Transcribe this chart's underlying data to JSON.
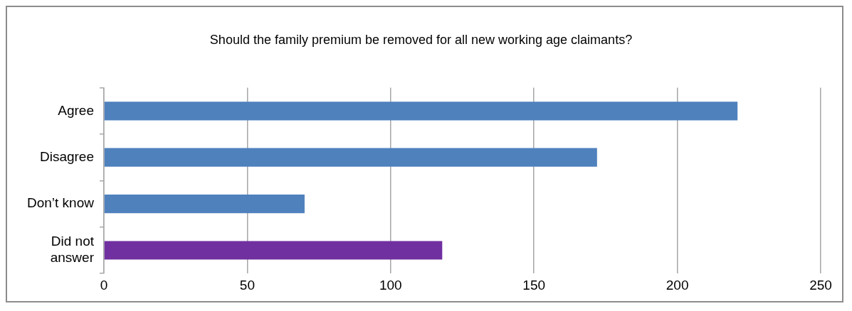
{
  "chart_data": {
    "type": "bar",
    "orientation": "horizontal",
    "title": "Should the family premium be removed for all new working age claimants?",
    "categories": [
      "Agree",
      "Disagree",
      "Don’t know",
      "Did not answer"
    ],
    "values": [
      221,
      172,
      70,
      118
    ],
    "colors": [
      "#4f81bd",
      "#4f81bd",
      "#4f81bd",
      "#7030a0"
    ],
    "xlim": [
      0,
      250
    ],
    "xticks": [
      0,
      50,
      100,
      150,
      200,
      250
    ],
    "grid": "x",
    "legend": false
  }
}
